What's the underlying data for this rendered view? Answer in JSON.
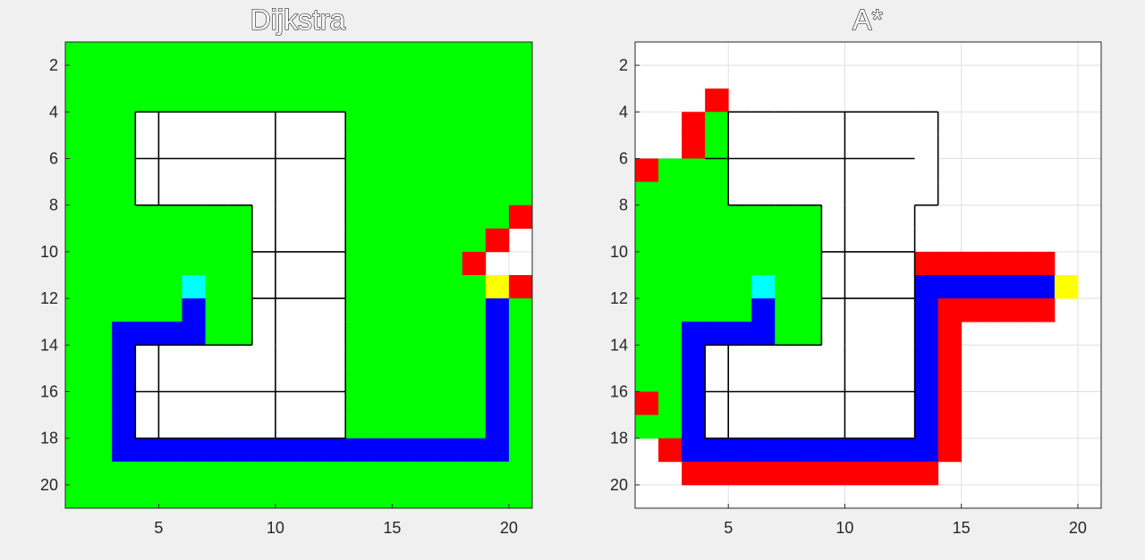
{
  "chart_data": [
    {
      "type": "heatmap",
      "title": "Dijkstra",
      "xlim": [
        1,
        21
      ],
      "ylim": [
        21,
        1
      ],
      "y_reversed": true,
      "xticks": [
        5,
        10,
        15,
        20
      ],
      "yticks": [
        2,
        4,
        6,
        8,
        10,
        12,
        14,
        16,
        18,
        20
      ],
      "grid": true,
      "background_color": "#ffffff",
      "colors": {
        "visited": "#00ff00",
        "frontier": "#ff0000",
        "path": "#0000ff",
        "start": "#00ffff",
        "goal": "#ffff00",
        "obstacle_cell": "#ffffff",
        "obstacle_edge": "#000000"
      },
      "rows_legend": "Each string is one grid row y=1..20, char index = column x=1..20. G=visited, R=frontier, B=path, C=start, Y=goal, W=obstacle, .=free",
      "rows": [
        "GGGGGGGGGGGGGGGGGGGG",
        "GGGGGGGGGGGGGGGGGGGG",
        "GGGGGGGGGGGGGGGGGGGG",
        "GGGWWWWWWWWWGGGGGGGG",
        "GGGWWWWWWWWWGGGGGGGG",
        "GGGWWWWWWWWWGGGGGGGG",
        "GGGWWWWWWWWWGGGGGGGG",
        "GGGGGGGGWWWWGGGGGGGR",
        "GGGGGGGGWWWWGGGGGGR.",
        "GGGGGGGGWWWWGGGGGR..",
        "GGGGGCGGWWWWGGGGGGYR",
        "GGGGGBGGWWWWGGGGGGBG",
        "GGBBBBGGWWWWGGGGGGBG",
        "GGBWWWWWWWWWGGGGGGBG",
        "GGBWWWWWWWWWGGGGGGBG",
        "GGBWWWWWWWWWGGGGGGBG",
        "GGBWWWWWWWWWGGGGGGBG",
        "GGBBBBBBBBBBBBBBBBBG",
        "GGGGGGGGGGGGGGGGGGGG",
        "GGGGGGGGGGGGGGGGGGGG"
      ]
    },
    {
      "type": "heatmap",
      "title": "A*",
      "xlim": [
        1,
        21
      ],
      "ylim": [
        21,
        1
      ],
      "y_reversed": true,
      "xticks": [
        5,
        10,
        15,
        20
      ],
      "yticks": [
        2,
        4,
        6,
        8,
        10,
        12,
        14,
        16,
        18,
        20
      ],
      "grid": true,
      "background_color": "#ffffff",
      "colors": {
        "visited": "#00ff00",
        "frontier": "#ff0000",
        "path": "#0000ff",
        "start": "#00ffff",
        "goal": "#ffff00",
        "obstacle_cell": "#ffffff",
        "obstacle_edge": "#000000"
      },
      "rows_legend": "Each string is one grid row y=1..20, char index = column x=1..20. G=visited, R=frontier, B=path, C=start, Y=goal, W=obstacle, .=free",
      "rows": [
        "....................",
        "....................",
        "...R................",
        "..RGWWWWWWWWW.......",
        "..RGWWWWWWWWW.......",
        "RGGGWWWWWWWWW.......",
        "GGGGWWWWWWWWW.......",
        "GGGGGGGGWWWW........",
        "GGGGGGGGWWWW........",
        "GGGGGGGGWWWWRRRRRR..",
        "GGGGGCGGWWWWBBBBBBY.",
        "GGGGGBGGWWWWBRRRRR..",
        "GGBBBBGGWWWWBR......",
        "GGBWWWWWWWWWBR......",
        "GGBWWWWWWWWWBR......",
        "RGBWWWWWWWWWBR......",
        "GGBWWWWWWWWWBR......",
        ".RBBBBBBBBBBBR......",
        "..RRRRRRRRRRR.......",
        "...................."
      ]
    }
  ]
}
